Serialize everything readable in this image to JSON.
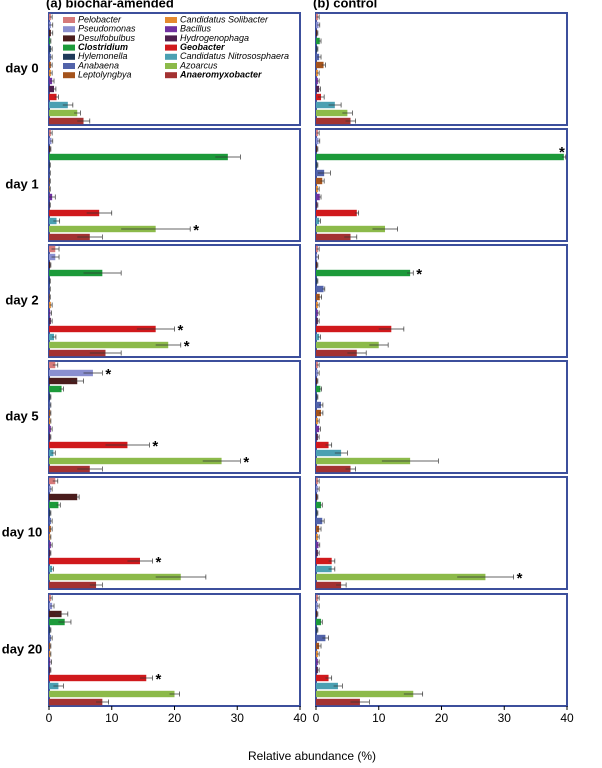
{
  "chart_data": {
    "type": "bar",
    "orientation": "horizontal",
    "panel_titles": [
      "(a) biochar-amended",
      "(b) control"
    ],
    "row_labels": [
      "day 0",
      "day 1",
      "day 2",
      "day 5",
      "day 10",
      "day 20"
    ],
    "xlabel": "Relative abundance (%)",
    "xlim": [
      0,
      40
    ],
    "xticks": [
      0,
      10,
      20,
      30,
      40
    ],
    "grid": false,
    "series": [
      {
        "name": "Pelobacter",
        "color": "#d67a7a",
        "values": [
          0.3,
          0.3,
          1,
          1,
          1,
          0.3,
          0.3,
          0.3,
          0.3,
          0.3,
          0.3,
          0.3
        ],
        "errors": [
          0.2,
          0.2,
          0.6,
          0.4,
          0.4,
          0.2,
          0.2,
          0.2,
          0.2,
          0.2,
          0.2,
          0.2
        ]
      },
      {
        "name": "Pseudomonas",
        "color": "#8a8fd0",
        "values": [
          0.3,
          0.4,
          1,
          7,
          0.3,
          0.5,
          0.4,
          0.4,
          0.2,
          0.3,
          0.3,
          0.3
        ],
        "errors": [
          0.3,
          0.2,
          0.6,
          1.5,
          0.2,
          0.3,
          0.2,
          0.2,
          0.2,
          0.2,
          0.2,
          0.2
        ],
        "annotations": [
          null,
          null,
          null,
          "*"
        ]
      },
      {
        "name": "Desulfobulbus",
        "color": "#4a1c1c",
        "values": [
          0.3,
          0.2,
          0.2,
          4.5,
          4.5,
          2,
          0.2,
          0.2,
          0.2,
          0.2,
          0.2,
          0.2
        ],
        "errors": [
          0.3,
          0.1,
          0.1,
          1,
          0.3,
          1,
          0.1,
          0.1,
          0.1,
          0.1,
          0.1,
          0.1
        ]
      },
      {
        "name": "Clostridium",
        "color": "#1c9a3a",
        "bold": true,
        "values": [
          0.2,
          28.5,
          8.5,
          2,
          1.5,
          2.5,
          0.6,
          39.5,
          15,
          0.7,
          0.8,
          0.8
        ],
        "errors": [
          0.1,
          2,
          3,
          0.3,
          0.3,
          1,
          0.2,
          0.3,
          0.5,
          0.2,
          0.2,
          0.2
        ],
        "annotations": [
          null,
          null,
          null,
          null,
          null,
          null,
          null,
          "*",
          "*"
        ]
      },
      {
        "name": "Hylemonella",
        "color": "#1f3a5a",
        "values": [
          0.3,
          0.1,
          0.1,
          0.2,
          0.2,
          0.2,
          0.2,
          0.2,
          0.2,
          0.2,
          0.2,
          0.2
        ],
        "errors": [
          0.2,
          0.1,
          0.1,
          0.1,
          0.1,
          0.1,
          0.1,
          0.1,
          0.1,
          0.1,
          0.1,
          0.1
        ]
      },
      {
        "name": "Anabaena",
        "color": "#5263aa",
        "values": [
          0.3,
          0.1,
          0.1,
          0.2,
          0.3,
          0.3,
          0.5,
          1.3,
          1.2,
          0.8,
          1,
          1.5
        ],
        "errors": [
          0.2,
          0.1,
          0.1,
          0.1,
          0.2,
          0.2,
          0.3,
          1,
          0.2,
          0.3,
          0.3,
          0.5
        ]
      },
      {
        "name": "Leptolyngbya",
        "color": "#a4531c",
        "values": [
          0.3,
          0.1,
          0.1,
          0.2,
          0.3,
          0.2,
          1.2,
          1,
          0.6,
          0.8,
          0.5,
          0.5
        ],
        "errors": [
          0.2,
          0.1,
          0.1,
          0.1,
          0.2,
          0.1,
          0.3,
          0.3,
          0.3,
          0.3,
          0.3,
          0.3
        ]
      },
      {
        "name": "Candidatus Solibacter",
        "color": "#e48a30",
        "values": [
          0.3,
          0.1,
          0.3,
          0.2,
          0.2,
          0.2,
          0.3,
          0.3,
          0.3,
          0.3,
          0.3,
          0.3
        ],
        "errors": [
          0.2,
          0.1,
          0.2,
          0.1,
          0.1,
          0.1,
          0.2,
          0.2,
          0.2,
          0.2,
          0.2,
          0.2
        ]
      },
      {
        "name": "Bacillus",
        "color": "#7030a0",
        "values": [
          0.5,
          0.5,
          0.2,
          0.3,
          0.3,
          0.2,
          0.3,
          0.6,
          0.3,
          0.5,
          0.4,
          0.3
        ],
        "errors": [
          0.3,
          0.5,
          0.2,
          0.2,
          0.2,
          0.2,
          0.2,
          0.2,
          0.2,
          0.2,
          0.2,
          0.2
        ]
      },
      {
        "name": "Hydrogenophaga",
        "color": "#4e1f4e",
        "values": [
          0.8,
          0.1,
          0.3,
          0.2,
          0.2,
          0.2,
          0.5,
          0.2,
          0.3,
          0.3,
          0.3,
          0.3
        ],
        "errors": [
          0.3,
          0.1,
          0.2,
          0.1,
          0.1,
          0.1,
          0.2,
          0.1,
          0.2,
          0.2,
          0.2,
          0.2
        ]
      },
      {
        "name": "Geobacter",
        "color": "#d0191c",
        "bold": true,
        "values": [
          1.2,
          8,
          17,
          12.5,
          14.5,
          15.5,
          0.8,
          6.5,
          12,
          2,
          2.5,
          2
        ],
        "errors": [
          0.3,
          2,
          3,
          3.5,
          2,
          1,
          0.5,
          0.3,
          2,
          0.5,
          0.5,
          0.5
        ],
        "annotations": [
          null,
          null,
          "*",
          "*",
          "*",
          "*"
        ]
      },
      {
        "name": "Candidatus Nitrososphaera",
        "color": "#4ba0b2",
        "values": [
          3,
          1.2,
          0.8,
          0.7,
          0.5,
          1.5,
          3,
          0.5,
          0.5,
          4,
          2.5,
          3.5
        ],
        "errors": [
          0.8,
          0.5,
          0.3,
          0.3,
          0.2,
          0.8,
          1,
          0.2,
          0.2,
          1,
          0.5,
          0.7
        ]
      },
      {
        "name": "Azoarcus",
        "color": "#8cba4a",
        "values": [
          4.5,
          17,
          19,
          27.5,
          21,
          20,
          5,
          11,
          10,
          15,
          27,
          15.5
        ],
        "errors": [
          0.5,
          5.5,
          2,
          3,
          4,
          0.8,
          0.8,
          2,
          1.5,
          4.5,
          4.5,
          1.5
        ],
        "annotations": [
          null,
          "*",
          "*",
          "*",
          null,
          null,
          null,
          null,
          null,
          null,
          "*"
        ]
      },
      {
        "name": "Anaeromyxobacter",
        "color": "#a33232",
        "bold": true,
        "values": [
          5.5,
          6.5,
          9,
          6.5,
          7.5,
          8.5,
          5.5,
          5.5,
          6.5,
          5.5,
          4,
          7
        ],
        "errors": [
          1,
          2,
          2.5,
          2,
          1,
          1,
          0.8,
          1,
          1.5,
          0.8,
          0.8,
          1.5
        ]
      }
    ]
  }
}
